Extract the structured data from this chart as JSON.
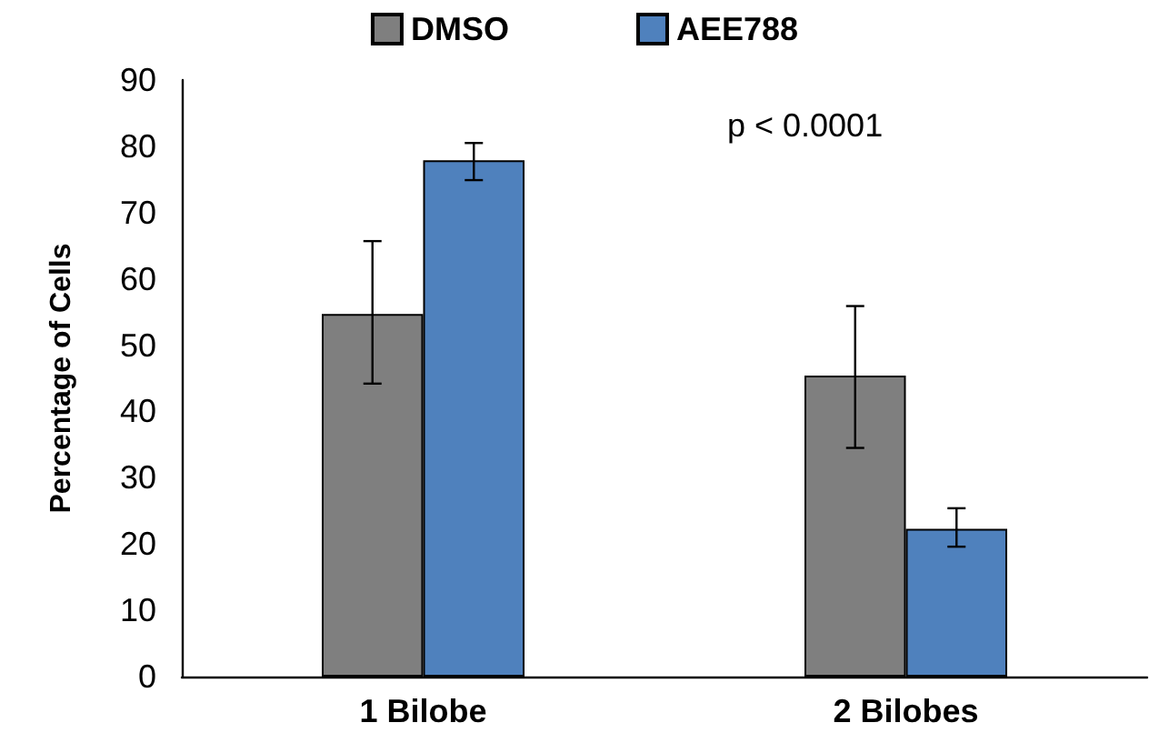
{
  "chart_data": {
    "type": "bar",
    "ylabel": "Percentage of Cells",
    "categories": [
      "1 Bilobe",
      "2 Bilobes"
    ],
    "series": [
      {
        "name": "DMSO",
        "color": "#7f7f7f",
        "values": [
          54.7,
          45.4
        ],
        "errors": [
          [
            44.2,
            65.7
          ],
          [
            34.5,
            55.9
          ]
        ]
      },
      {
        "name": "AEE788",
        "color": "#4f81bd",
        "values": [
          77.9,
          22.3
        ],
        "errors": [
          [
            74.9,
            80.5
          ],
          [
            19.6,
            25.4
          ]
        ]
      }
    ],
    "ylim": [
      0,
      90
    ],
    "yticks": [
      0,
      10,
      20,
      30,
      40,
      50,
      60,
      70,
      80,
      90
    ],
    "grid": false,
    "legend": "top",
    "annotations": [
      "p < 0.0001"
    ]
  }
}
